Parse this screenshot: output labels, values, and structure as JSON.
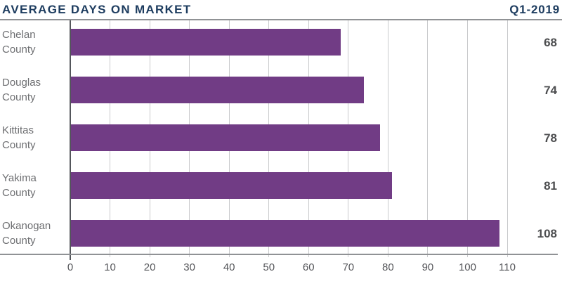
{
  "chart_data": {
    "type": "bar",
    "orientation": "horizontal",
    "title": "AVERAGE DAYS ON MARKET",
    "period": "Q1-2019",
    "categories": [
      "Chelan County",
      "Douglas County",
      "Kittitas County",
      "Yakima County",
      "Okanogan County"
    ],
    "values": [
      68,
      74,
      78,
      81,
      108
    ],
    "value_labels": [
      "68",
      "74",
      "78",
      "81",
      "108"
    ],
    "xlim": [
      0,
      110
    ],
    "xticks": [
      0,
      10,
      20,
      30,
      40,
      50,
      60,
      70,
      80,
      90,
      100,
      110
    ],
    "grid": "vertical",
    "legend": "none",
    "bar_color": "#713c85",
    "title_color": "#1d3c5f",
    "category_label_color": "#6d6e71",
    "value_label_color": "#4d4e50",
    "gridline_color": "#c9cacc",
    "zero_axis_color": "#54565b",
    "rule_color": "#909295"
  }
}
